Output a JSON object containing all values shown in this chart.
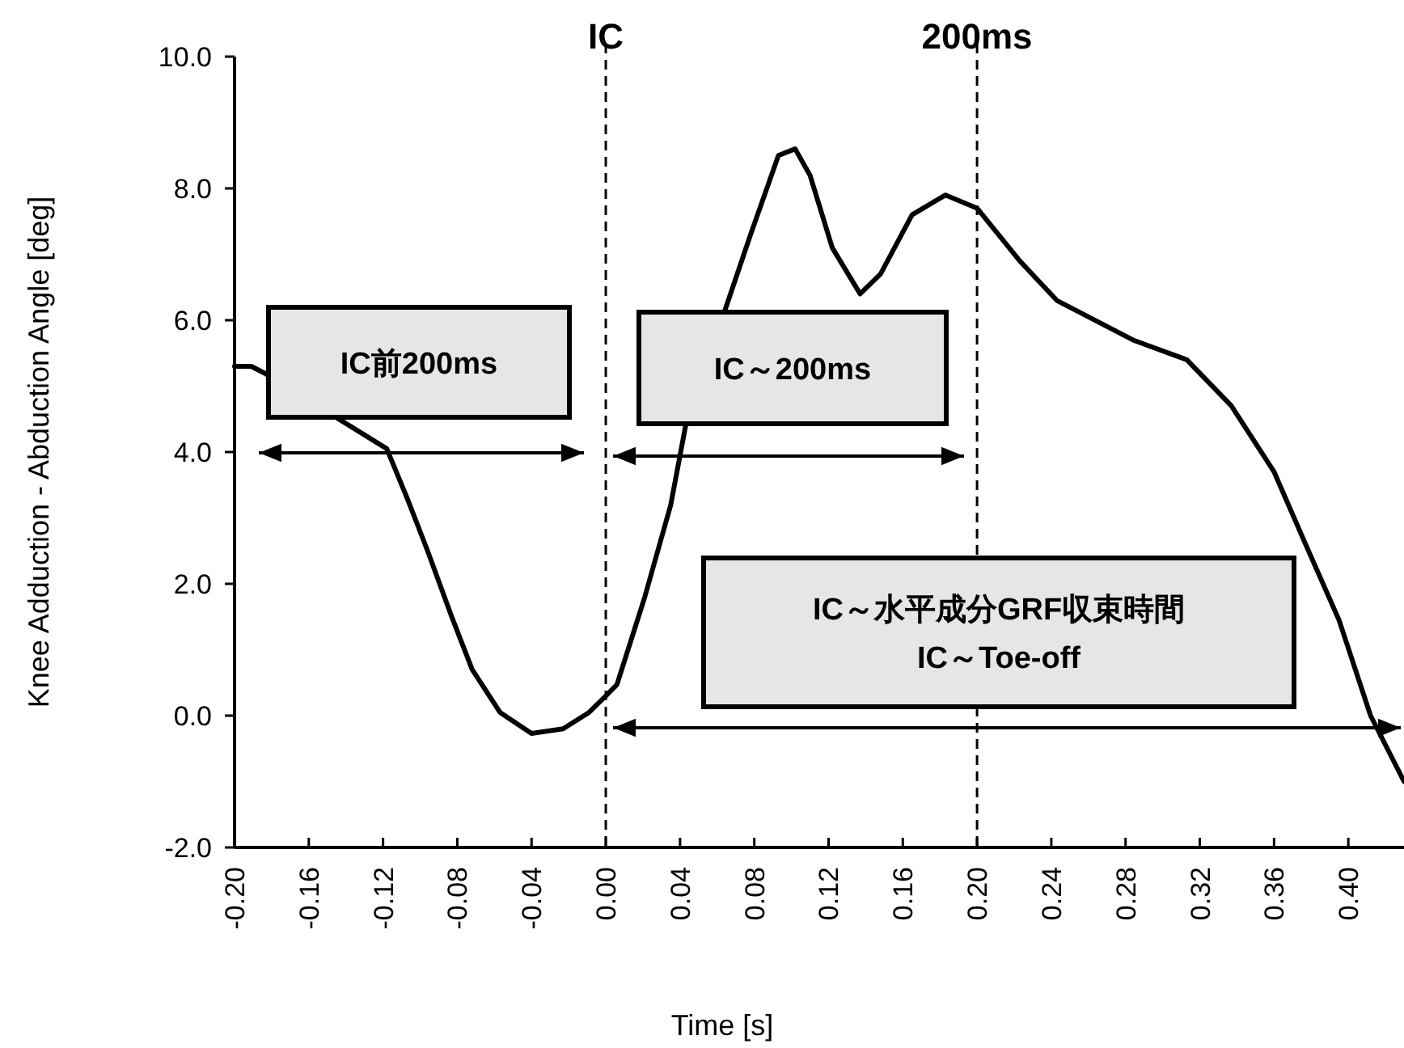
{
  "chart_data": {
    "type": "line",
    "xlabel": "Time [s]",
    "ylabel": "Knee Adduction - Abduction Angle [deg]",
    "xlim": [
      -0.2,
      0.43
    ],
    "ylim": [
      -2,
      10
    ],
    "xticks": [
      {
        "value": -0.2,
        "label": "-0.20"
      },
      {
        "value": -0.16,
        "label": "-0.16"
      },
      {
        "value": -0.12,
        "label": "-0.12"
      },
      {
        "value": -0.08,
        "label": "-0.08"
      },
      {
        "value": -0.04,
        "label": "-0.04"
      },
      {
        "value": 0,
        "label": "0.00"
      },
      {
        "value": 0.04,
        "label": "0.04"
      },
      {
        "value": 0.08,
        "label": "0.08"
      },
      {
        "value": 0.12,
        "label": "0.12"
      },
      {
        "value": 0.16,
        "label": "0.16"
      },
      {
        "value": 0.2,
        "label": "0.20"
      },
      {
        "value": 0.24,
        "label": "0.24"
      },
      {
        "value": 0.28,
        "label": "0.28"
      },
      {
        "value": 0.32,
        "label": "0.32"
      },
      {
        "value": 0.36,
        "label": "0.36"
      },
      {
        "value": 0.4,
        "label": "0.40"
      }
    ],
    "yticks": [
      {
        "value": -2,
        "label": "-2.0"
      },
      {
        "value": 0,
        "label": "0.0"
      },
      {
        "value": 2,
        "label": "2.0"
      },
      {
        "value": 4,
        "label": "4.0"
      },
      {
        "value": 6,
        "label": "6.0"
      },
      {
        "value": 8,
        "label": "8.0"
      },
      {
        "value": 10,
        "label": "10.0"
      }
    ],
    "grid": false,
    "marker": "none",
    "line_style": "solid",
    "series": [
      {
        "color": "#000000",
        "x": [
          -0.2,
          -0.191,
          -0.184,
          -0.118,
          -0.107,
          -0.096,
          -0.083,
          -0.072,
          -0.057,
          -0.04,
          -0.023,
          -0.009,
          0.0,
          0.006,
          0.021,
          0.035,
          0.043,
          0.066,
          0.078,
          0.093,
          0.102,
          0.11,
          0.122,
          0.137,
          0.148,
          0.165,
          0.183,
          0.2,
          0.223,
          0.243,
          0.284,
          0.313,
          0.337,
          0.36,
          0.377,
          0.395,
          0.412,
          0.43
        ],
        "values": [
          5.3,
          5.3,
          5.2,
          4.05,
          3.3,
          2.5,
          1.5,
          0.7,
          0.05,
          -0.27,
          -0.2,
          0.05,
          0.3,
          0.47,
          1.8,
          3.2,
          4.4,
          6.3,
          7.3,
          8.5,
          8.6,
          8.2,
          7.1,
          6.4,
          6.7,
          7.6,
          7.9,
          7.7,
          6.9,
          6.3,
          5.7,
          5.4,
          4.7,
          3.7,
          2.6,
          1.45,
          0.0,
          -1.0
        ]
      }
    ],
    "ref_lines": [
      {
        "axis": "x",
        "value": 0,
        "label": "IC",
        "line_style": "dashed",
        "color": "#000000"
      },
      {
        "axis": "x",
        "value": 0.2,
        "label": "200ms",
        "line_style": "dashed",
        "color": "#000000"
      }
    ],
    "annotations": [
      "IC前200ms",
      "IC～200ms",
      "IC～水平成分GRF収束時間\nIC～Toe-off"
    ]
  }
}
